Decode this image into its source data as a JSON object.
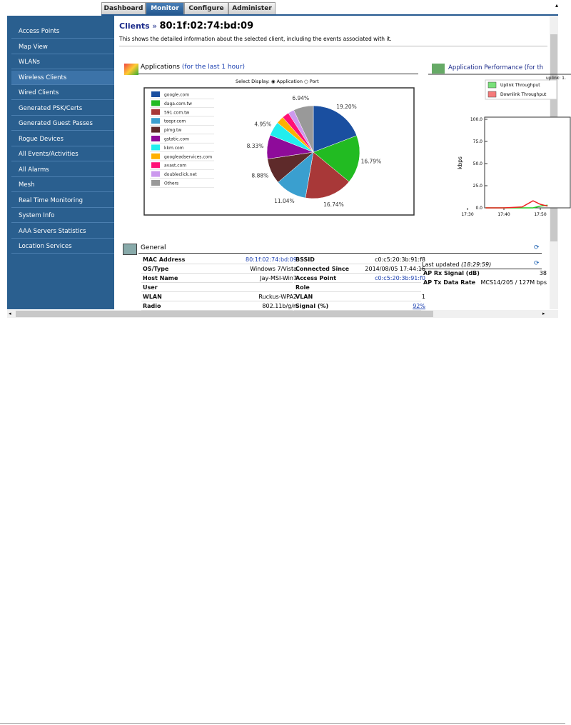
{
  "tabs": [
    "Dashboard",
    "Monitor",
    "Configure",
    "Administer"
  ],
  "sidebar": [
    "Access Points",
    "Map View",
    "WLANs",
    "Wireless Clients",
    "Wired Clients",
    "Generated PSK/Certs",
    "Generated Guest Passes",
    "Rogue Devices",
    "All Events/Activities",
    "All Alarms",
    "Mesh",
    "Real Time Monitoring",
    "System Info",
    "AAA Servers Statistics",
    "Location Services"
  ],
  "header": {
    "breadcrumb": "Clients",
    "separator": "»",
    "title": "80:1f:02:74:bd:09",
    "description": "This shows the detailed information about the selected client, including the events associated with it."
  },
  "applications": {
    "title": "Applications",
    "period": "(for the last 1 hour)",
    "select_label": "Select Display:",
    "options": [
      "Application",
      "Port"
    ],
    "chart_data": {
      "type": "pie",
      "categories": [
        "google.com",
        "daga.com.tw",
        "591.com.tw",
        "teepr.com",
        "pimg.tw",
        "gstatic.com",
        "kkm.com",
        "googleadservices.com",
        "avast.com",
        "doubleclick.net",
        "Others"
      ],
      "values": [
        19.2,
        16.79,
        16.74,
        11.04,
        8.88,
        8.33,
        4.95,
        2.6,
        2.4,
        2.13,
        6.94
      ],
      "value_labels": [
        "19.20%",
        "16.79%",
        "16.74%",
        "11.04%",
        "8.88%",
        "8.33%",
        "4.95%",
        null,
        null,
        null,
        "6.94%"
      ],
      "colors": [
        "#1a4fa0",
        "#22bb22",
        "#a83838",
        "#3a9fcf",
        "#5e2a2a",
        "#8e0b9a",
        "#22eeee",
        "#ffb000",
        "#ff1177",
        "#cc99ee",
        "#999999"
      ]
    }
  },
  "performance": {
    "chart_data": {
      "type": "line",
      "title": "Application Performance (for th",
      "subtitle": "uplink: 1.",
      "y_label": "kbps",
      "x": [
        5,
        10,
        15,
        18,
        20,
        22
      ],
      "series": [
        {
          "name": "Uplink Throughput",
          "color": "#22cc22",
          "values": [
            0,
            0,
            0,
            0,
            2,
            3
          ]
        },
        {
          "name": "Downlink Throughput",
          "color": "#ee2222",
          "values": [
            0,
            0,
            1,
            8,
            4,
            2
          ]
        }
      ],
      "xlim": [
        0,
        25
      ],
      "xticks": [
        {
          "value": 0,
          "label": "17:30"
        },
        {
          "value": 10,
          "label": "17:40"
        },
        {
          "value": 20,
          "label": "17:50"
        }
      ],
      "ylim": [
        0,
        100
      ],
      "yticks": [
        {
          "value": 0,
          "label": "0.0"
        },
        {
          "value": 25,
          "label": "25.0"
        },
        {
          "value": 50,
          "label": "50.0"
        },
        {
          "value": 75,
          "label": "75.0"
        },
        {
          "value": 100,
          "label": "100.0"
        }
      ]
    }
  },
  "general": {
    "title": "General",
    "left": [
      {
        "label": "MAC Address",
        "value": "80:1f:02:74:bd:09"
      },
      {
        "label": "OS/Type",
        "value": "Windows 7/Vista"
      },
      {
        "label": "Host Name",
        "value": "Jay-MSI-Win7"
      },
      {
        "label": "User"
      },
      {
        "label": "WLAN",
        "value": "Ruckus-WPA2"
      },
      {
        "label": "Radio",
        "value": "802.11b/g/n"
      }
    ],
    "middle": [
      {
        "label": "BSSID",
        "value": "c0:c5:20:3b:91:f8"
      },
      {
        "label": "Connected Since",
        "value": "2014/08/05 17:44:16"
      },
      {
        "label": "Access Point",
        "value": "c0:c5:20:3b:91:f0"
      },
      {
        "label": "Role"
      },
      {
        "label": "VLAN",
        "value": "1"
      },
      {
        "label": "Signal (%)",
        "value": "92%"
      }
    ],
    "right": {
      "title": "Last updated",
      "time": "(18:29:59)",
      "rows": [
        {
          "label": "AP Rx Signal (dB)",
          "value": "38"
        },
        {
          "label": "AP Tx Data Rate",
          "value": "MCS14/205 / 127M bps"
        }
      ]
    }
  }
}
